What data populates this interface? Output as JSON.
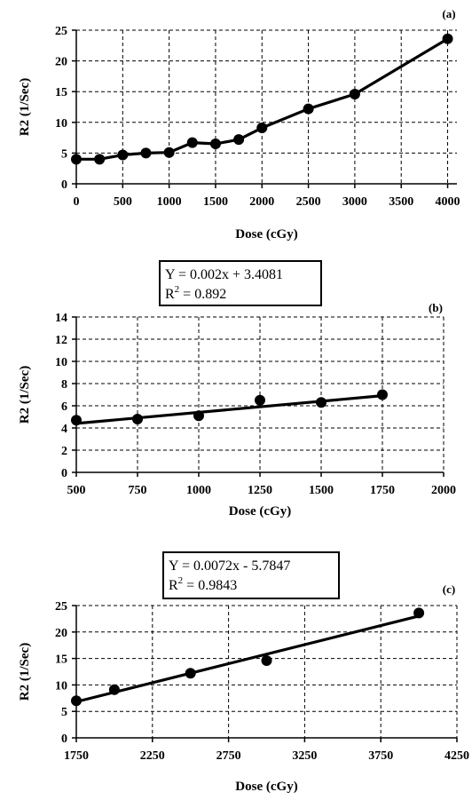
{
  "chart_data": [
    {
      "id": "a",
      "panel_label": "(a)",
      "type": "line",
      "xlabel": "Dose (cGy)",
      "ylabel": "R2 (1/Sec)",
      "xlim": [
        0,
        4100
      ],
      "ylim": [
        0,
        25
      ],
      "xticks": [
        0,
        500,
        1000,
        1500,
        2000,
        2500,
        3000,
        3500,
        4000
      ],
      "yticks": [
        0,
        5,
        10,
        15,
        20,
        25
      ],
      "grid": true,
      "series": [
        {
          "x": [
            0,
            250,
            500,
            750,
            1000,
            1250,
            1500,
            1750,
            2000,
            2500,
            3000,
            4000
          ],
          "y": [
            4.0,
            4.0,
            4.7,
            5.0,
            5.1,
            6.7,
            6.5,
            7.2,
            9.1,
            12.2,
            14.6,
            23.6
          ]
        }
      ]
    },
    {
      "id": "b",
      "panel_label": "(b)",
      "type": "scatter",
      "xlabel": "Dose (cGy)",
      "ylabel": "R2 (1/Sec)",
      "xlim": [
        500,
        2000
      ],
      "ylim": [
        0,
        14
      ],
      "xticks": [
        500,
        750,
        1000,
        1250,
        1500,
        1750,
        2000
      ],
      "yticks": [
        0,
        2,
        4,
        6,
        8,
        10,
        12,
        14
      ],
      "grid": true,
      "series": [
        {
          "x": [
            500,
            750,
            1000,
            1250,
            1500,
            1750
          ],
          "y": [
            4.7,
            4.8,
            5.1,
            6.5,
            6.3,
            7.0
          ]
        }
      ],
      "trendline": {
        "slope": 0.002,
        "intercept": 3.4081,
        "x_range": [
          500,
          1750
        ]
      },
      "equation": {
        "line1": "Y = 0.002x + 3.4081",
        "r2_prefix": "R",
        "r2_sup": "2",
        "r2_value": " = 0.892"
      }
    },
    {
      "id": "c",
      "panel_label": "(c)",
      "type": "scatter",
      "xlabel": "Dose (cGy)",
      "ylabel": "R2 (1/Sec)",
      "xlim": [
        1750,
        4250
      ],
      "ylim": [
        0,
        25
      ],
      "xticks": [
        1750,
        2250,
        2750,
        3250,
        3750,
        4250
      ],
      "yticks": [
        0,
        5,
        10,
        15,
        20,
        25
      ],
      "grid": true,
      "series": [
        {
          "x": [
            1750,
            2000,
            2500,
            3000,
            4000
          ],
          "y": [
            7.0,
            9.1,
            12.2,
            14.6,
            23.6
          ]
        }
      ],
      "trendline": {
        "slope": 0.0072,
        "intercept": -5.7847,
        "x_range": [
          1750,
          4000
        ]
      },
      "equation": {
        "line1": "Y = 0.0072x - 5.7847",
        "r2_prefix": "R",
        "r2_sup": "2",
        "r2_value": " = 0.9843"
      }
    }
  ]
}
